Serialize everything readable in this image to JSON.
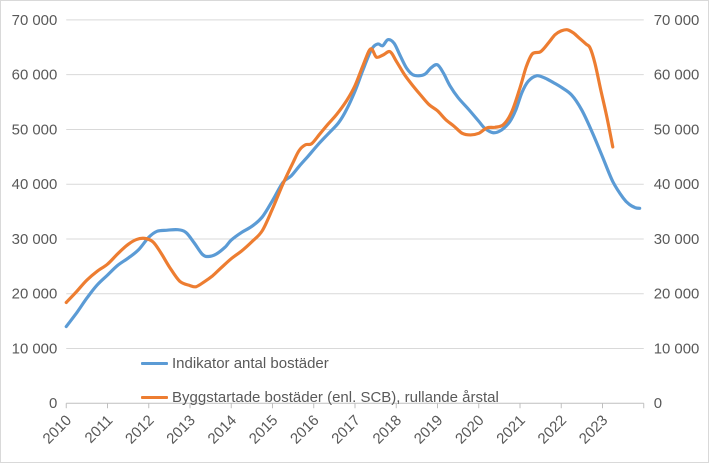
{
  "chart_data": {
    "type": "line",
    "title": "",
    "xlabel": "",
    "ylabel": "",
    "grid": "horizontal",
    "legend_position": "inside-bottom-left",
    "x_range": [
      2010,
      2024
    ],
    "ylim": [
      0,
      70000
    ],
    "y_ticks": [
      {
        "value": 0,
        "label": "0"
      },
      {
        "value": 10000,
        "label": "10 000"
      },
      {
        "value": 20000,
        "label": "20 000"
      },
      {
        "value": 30000,
        "label": "30 000"
      },
      {
        "value": 40000,
        "label": "40 000"
      },
      {
        "value": 50000,
        "label": "50 000"
      },
      {
        "value": 60000,
        "label": "60 000"
      },
      {
        "value": 70000,
        "label": "70 000"
      }
    ],
    "y_axis_right_mirrored": true,
    "x_ticks": [
      {
        "year": 2010,
        "label": "2010"
      },
      {
        "year": 2011,
        "label": "2011"
      },
      {
        "year": 2012,
        "label": "2012"
      },
      {
        "year": 2013,
        "label": "2013"
      },
      {
        "year": 2014,
        "label": "2014"
      },
      {
        "year": 2015,
        "label": "2015"
      },
      {
        "year": 2016,
        "label": "2016"
      },
      {
        "year": 2017,
        "label": "2017"
      },
      {
        "year": 2018,
        "label": "2018"
      },
      {
        "year": 2019,
        "label": "2019"
      },
      {
        "year": 2020,
        "label": "2020"
      },
      {
        "year": 2021,
        "label": "2021"
      },
      {
        "year": 2022,
        "label": "2022"
      },
      {
        "year": 2023,
        "label": "2023"
      }
    ],
    "colors": {
      "gridline": "#d9d9d9",
      "axis_line": "#bfbfbf",
      "tick_mark": "#bfbfbf",
      "axis_text": "#595959",
      "series_blue": "#5b9bd5",
      "series_orange": "#ed7d31"
    },
    "series": [
      {
        "name": "Indikator antal bostäder",
        "color": "#5b9bd5",
        "points": [
          [
            2010.0,
            14000
          ],
          [
            2010.25,
            16500
          ],
          [
            2010.5,
            19200
          ],
          [
            2010.75,
            21600
          ],
          [
            2011.0,
            23400
          ],
          [
            2011.25,
            25200
          ],
          [
            2011.5,
            26500
          ],
          [
            2011.75,
            28000
          ],
          [
            2012.0,
            30300
          ],
          [
            2012.2,
            31400
          ],
          [
            2012.45,
            31600
          ],
          [
            2012.7,
            31700
          ],
          [
            2012.9,
            31200
          ],
          [
            2013.1,
            29300
          ],
          [
            2013.3,
            27200
          ],
          [
            2013.45,
            26800
          ],
          [
            2013.65,
            27300
          ],
          [
            2013.85,
            28500
          ],
          [
            2014.0,
            29800
          ],
          [
            2014.25,
            31200
          ],
          [
            2014.5,
            32300
          ],
          [
            2014.75,
            34000
          ],
          [
            2015.0,
            37000
          ],
          [
            2015.25,
            40300
          ],
          [
            2015.45,
            41500
          ],
          [
            2015.65,
            43300
          ],
          [
            2015.85,
            45000
          ],
          [
            2016.1,
            47200
          ],
          [
            2016.35,
            49200
          ],
          [
            2016.6,
            51200
          ],
          [
            2016.8,
            53700
          ],
          [
            2017.0,
            57000
          ],
          [
            2017.2,
            61000
          ],
          [
            2017.4,
            64600
          ],
          [
            2017.55,
            65600
          ],
          [
            2017.67,
            65300
          ],
          [
            2017.8,
            66400
          ],
          [
            2017.95,
            65700
          ],
          [
            2018.1,
            63400
          ],
          [
            2018.25,
            61200
          ],
          [
            2018.4,
            60000
          ],
          [
            2018.55,
            59800
          ],
          [
            2018.7,
            60100
          ],
          [
            2018.85,
            61300
          ],
          [
            2019.0,
            61800
          ],
          [
            2019.15,
            60200
          ],
          [
            2019.3,
            58000
          ],
          [
            2019.5,
            55800
          ],
          [
            2019.75,
            53700
          ],
          [
            2020.0,
            51500
          ],
          [
            2020.15,
            50200
          ],
          [
            2020.35,
            49400
          ],
          [
            2020.55,
            49900
          ],
          [
            2020.75,
            51400
          ],
          [
            2020.9,
            53600
          ],
          [
            2021.05,
            56800
          ],
          [
            2021.2,
            58800
          ],
          [
            2021.4,
            59800
          ],
          [
            2021.6,
            59400
          ],
          [
            2021.8,
            58600
          ],
          [
            2022.0,
            57700
          ],
          [
            2022.25,
            56300
          ],
          [
            2022.5,
            53500
          ],
          [
            2022.75,
            49500
          ],
          [
            2023.0,
            45000
          ],
          [
            2023.25,
            40500
          ],
          [
            2023.5,
            37500
          ],
          [
            2023.65,
            36300
          ],
          [
            2023.8,
            35700
          ],
          [
            2023.9,
            35600
          ]
        ]
      },
      {
        "name": "Byggstartade bostäder (enl. SCB), rullande årstal",
        "color": "#ed7d31",
        "points": [
          [
            2010.0,
            18400
          ],
          [
            2010.25,
            20400
          ],
          [
            2010.5,
            22500
          ],
          [
            2010.75,
            24100
          ],
          [
            2011.0,
            25400
          ],
          [
            2011.25,
            27300
          ],
          [
            2011.5,
            29000
          ],
          [
            2011.7,
            29900
          ],
          [
            2011.9,
            30100
          ],
          [
            2012.1,
            29500
          ],
          [
            2012.3,
            27400
          ],
          [
            2012.5,
            24900
          ],
          [
            2012.75,
            22300
          ],
          [
            2013.0,
            21500
          ],
          [
            2013.15,
            21300
          ],
          [
            2013.35,
            22200
          ],
          [
            2013.55,
            23300
          ],
          [
            2013.75,
            24700
          ],
          [
            2014.0,
            26400
          ],
          [
            2014.25,
            27800
          ],
          [
            2014.5,
            29500
          ],
          [
            2014.75,
            31500
          ],
          [
            2015.0,
            35500
          ],
          [
            2015.25,
            40000
          ],
          [
            2015.5,
            44000
          ],
          [
            2015.65,
            46200
          ],
          [
            2015.8,
            47200
          ],
          [
            2015.95,
            47400
          ],
          [
            2016.15,
            49200
          ],
          [
            2016.35,
            51000
          ],
          [
            2016.55,
            52700
          ],
          [
            2016.8,
            55300
          ],
          [
            2017.0,
            58000
          ],
          [
            2017.2,
            61800
          ],
          [
            2017.38,
            64700
          ],
          [
            2017.52,
            63200
          ],
          [
            2017.68,
            63600
          ],
          [
            2017.85,
            64200
          ],
          [
            2018.0,
            62500
          ],
          [
            2018.2,
            60000
          ],
          [
            2018.4,
            58000
          ],
          [
            2018.6,
            56200
          ],
          [
            2018.8,
            54500
          ],
          [
            2019.0,
            53400
          ],
          [
            2019.2,
            51800
          ],
          [
            2019.4,
            50600
          ],
          [
            2019.6,
            49300
          ],
          [
            2019.8,
            49000
          ],
          [
            2020.0,
            49300
          ],
          [
            2020.2,
            50300
          ],
          [
            2020.4,
            50400
          ],
          [
            2020.6,
            50900
          ],
          [
            2020.8,
            53200
          ],
          [
            2021.0,
            57600
          ],
          [
            2021.15,
            61400
          ],
          [
            2021.3,
            63800
          ],
          [
            2021.5,
            64200
          ],
          [
            2021.7,
            65900
          ],
          [
            2021.85,
            67300
          ],
          [
            2022.0,
            68000
          ],
          [
            2022.15,
            68200
          ],
          [
            2022.3,
            67600
          ],
          [
            2022.45,
            66600
          ],
          [
            2022.6,
            65600
          ],
          [
            2022.7,
            64900
          ],
          [
            2022.82,
            62000
          ],
          [
            2022.95,
            57500
          ],
          [
            2023.1,
            52500
          ],
          [
            2023.25,
            46800
          ]
        ]
      }
    ]
  }
}
